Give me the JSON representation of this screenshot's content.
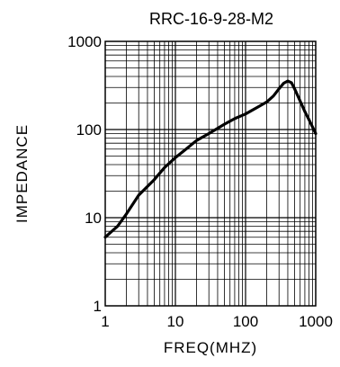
{
  "chart_data": {
    "type": "line",
    "title": "RRC-16-9-28-M2",
    "xlabel": "FREQ(MHZ)",
    "ylabel": "IMPEDANCE",
    "x_scale": "log",
    "y_scale": "log",
    "xlim": [
      1,
      1000
    ],
    "ylim": [
      1,
      1000
    ],
    "x_tick_labels": [
      "1",
      "10",
      "100",
      "1000"
    ],
    "y_tick_labels": [
      "1",
      "10",
      "100",
      "1000"
    ],
    "grid": true,
    "line_color": "#000000",
    "series": [
      {
        "x": [
          1,
          1.5,
          2,
          3,
          5,
          7,
          10,
          15,
          20,
          30,
          50,
          70,
          100,
          150,
          200,
          250,
          300,
          350,
          400,
          450,
          500,
          600,
          700,
          800,
          1000
        ],
        "y": [
          6,
          8,
          11,
          18,
          27,
          37,
          48,
          62,
          75,
          90,
          115,
          133,
          150,
          180,
          205,
          240,
          290,
          335,
          355,
          340,
          290,
          210,
          160,
          130,
          90
        ]
      }
    ]
  }
}
